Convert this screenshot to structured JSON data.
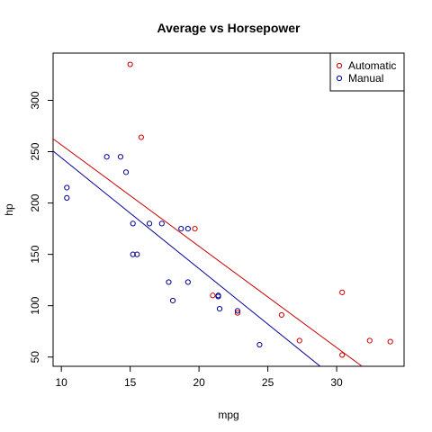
{
  "chart_data": {
    "type": "scatter",
    "title": "Average vs Horsepower",
    "xlabel": "mpg",
    "ylabel": "hp",
    "xlim": [
      9.4,
      34.9
    ],
    "ylim": [
      41,
      346
    ],
    "x_ticks": [
      10,
      15,
      20,
      25,
      30
    ],
    "y_ticks": [
      50,
      100,
      150,
      200,
      250,
      300
    ],
    "legend_position": "top-right",
    "series": [
      {
        "name": "Automatic",
        "color": "#CC0000",
        "points": [
          {
            "x": 15.0,
            "y": 335
          },
          {
            "x": 15.8,
            "y": 264
          },
          {
            "x": 19.7,
            "y": 175
          },
          {
            "x": 21.0,
            "y": 110
          },
          {
            "x": 22.8,
            "y": 93
          },
          {
            "x": 26.0,
            "y": 91
          },
          {
            "x": 27.3,
            "y": 66
          },
          {
            "x": 30.4,
            "y": 52
          },
          {
            "x": 30.4,
            "y": 113
          },
          {
            "x": 32.4,
            "y": 66
          },
          {
            "x": 33.9,
            "y": 65
          }
        ],
        "fit_line": {
          "intercept": 355.3,
          "slope": -9.87
        }
      },
      {
        "name": "Manual",
        "color": "#000099",
        "points": [
          {
            "x": 10.4,
            "y": 215
          },
          {
            "x": 10.4,
            "y": 205
          },
          {
            "x": 13.3,
            "y": 245
          },
          {
            "x": 14.3,
            "y": 245
          },
          {
            "x": 14.7,
            "y": 230
          },
          {
            "x": 15.2,
            "y": 180
          },
          {
            "x": 15.2,
            "y": 150
          },
          {
            "x": 15.5,
            "y": 150
          },
          {
            "x": 16.4,
            "y": 180
          },
          {
            "x": 17.3,
            "y": 180
          },
          {
            "x": 17.8,
            "y": 123
          },
          {
            "x": 18.1,
            "y": 105
          },
          {
            "x": 18.7,
            "y": 175
          },
          {
            "x": 19.2,
            "y": 175
          },
          {
            "x": 19.2,
            "y": 123
          },
          {
            "x": 21.4,
            "y": 110
          },
          {
            "x": 21.4,
            "y": 109
          },
          {
            "x": 21.5,
            "y": 97
          },
          {
            "x": 22.8,
            "y": 95
          },
          {
            "x": 24.4,
            "y": 62
          }
        ],
        "fit_line": {
          "intercept": 352.1,
          "slope": -10.8
        }
      }
    ]
  }
}
